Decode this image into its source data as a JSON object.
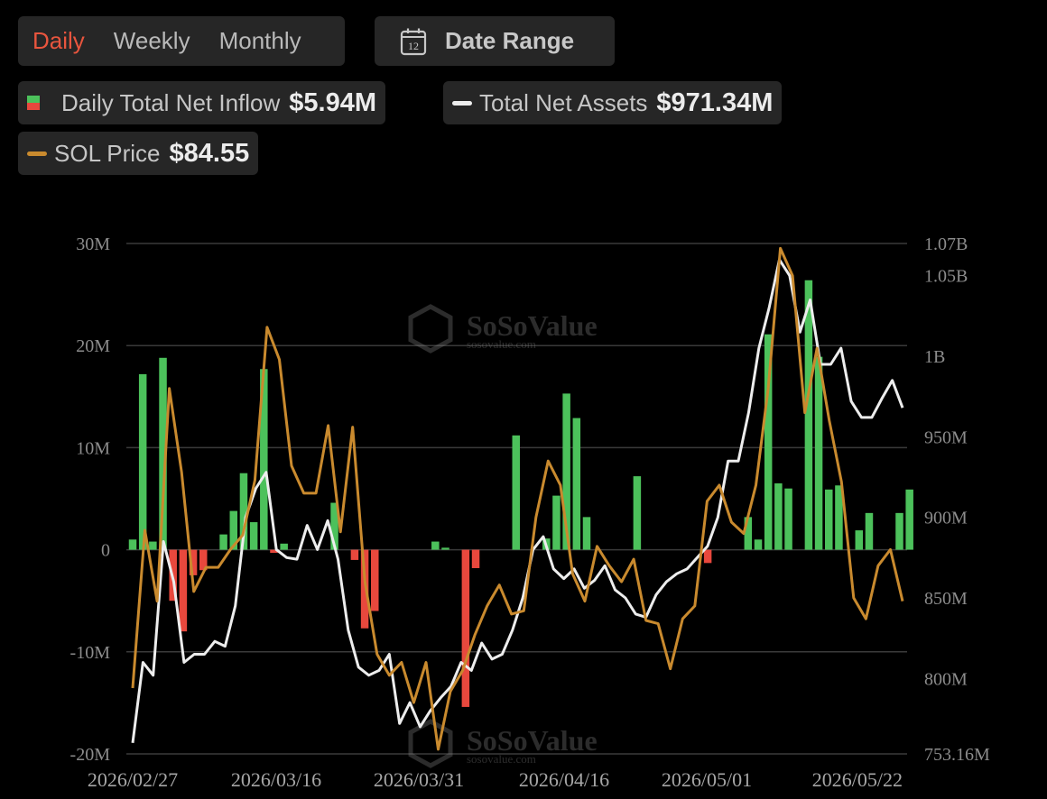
{
  "tabs": {
    "daily": "Daily",
    "weekly": "Weekly",
    "monthly": "Monthly"
  },
  "date_range": {
    "label": "Date Range",
    "icon_day": "12"
  },
  "legend": {
    "inflow": {
      "label": "Daily Total Net Inflow",
      "value": "$5.94M"
    },
    "assets": {
      "label": "Total Net Assets",
      "value": "$971.34M"
    },
    "price": {
      "label": "SOL Price",
      "value": "$84.55"
    }
  },
  "colors": {
    "positive": "#4cc15b",
    "negative": "#e8483d",
    "assets": "#ededed",
    "price": "#c98a2e",
    "active_tab": "#e8553e",
    "grid": "#3a3a3a"
  },
  "chart_data": {
    "type": "bar",
    "x_ticks": [
      "2026/02/27",
      "2026/03/16",
      "2026/03/31",
      "2026/04/16",
      "2026/05/01",
      "2026/05/22"
    ],
    "left_axis": {
      "ticks": [
        "30M",
        "20M",
        "10M",
        "0",
        "-10M",
        "-20M"
      ],
      "range": [
        -20,
        30
      ],
      "unit": "M"
    },
    "right_axis": {
      "ticks": [
        "1.07B",
        "1.05B",
        "1B",
        "950M",
        "900M",
        "850M",
        "800M",
        "753.16M"
      ],
      "range": [
        753.16,
        1070
      ],
      "unit": "M"
    },
    "series": [
      {
        "name": "Daily Total Net Inflow",
        "values": [
          1,
          17.2,
          0.8,
          18.8,
          -5,
          -8,
          -2.5,
          -2,
          0,
          1.5,
          3.8,
          7.5,
          2.7,
          17.7,
          -0.3,
          0.6,
          0,
          0,
          0,
          0,
          4.6,
          0,
          -1,
          -7.7,
          -6,
          0,
          0,
          0,
          0,
          0,
          0.8,
          0.2,
          0,
          -15.4,
          -1.8,
          0,
          0,
          0,
          11.2,
          0,
          0,
          1.1,
          5.3,
          15.3,
          12.9,
          3.2,
          0,
          0,
          0,
          0,
          7.2,
          0,
          0,
          0,
          0,
          0,
          0,
          -1.3,
          0,
          0,
          0,
          3.2,
          1,
          21.1,
          6.5,
          6,
          0,
          26.4,
          18.9,
          5.9,
          6.3,
          0,
          1.9,
          3.6,
          0,
          0,
          3.6,
          5.9
        ]
      },
      {
        "name": "Total Net Assets",
        "values": [
          760,
          810,
          802,
          885,
          860,
          810,
          815,
          815,
          823,
          820,
          845,
          900,
          918,
          928,
          880,
          875,
          874,
          895,
          880,
          898,
          874,
          830,
          807,
          802,
          805,
          815,
          772,
          785,
          770,
          780,
          788,
          795,
          810,
          805,
          822,
          812,
          815,
          830,
          850,
          880,
          888,
          868,
          862,
          868,
          856,
          861,
          870,
          855,
          850,
          840,
          838,
          852,
          860,
          865,
          868,
          875,
          882,
          900,
          935,
          935,
          965,
          1005,
          1030,
          1060,
          1050,
          1015,
          1035,
          995,
          995,
          1005,
          972,
          962,
          962,
          974,
          985,
          968
        ]
      },
      {
        "name": "SOL Price",
        "values": [
          794,
          892,
          848,
          980,
          928,
          854,
          869,
          869,
          880,
          889,
          923,
          1018,
          998,
          932,
          915,
          915,
          957,
          891,
          956,
          860,
          815,
          802,
          810,
          785,
          810,
          756,
          792,
          805,
          827,
          845,
          858,
          840,
          842,
          900,
          935,
          920,
          865,
          848,
          882,
          870,
          860,
          874,
          836,
          834,
          806,
          837,
          845,
          910,
          920,
          897,
          890,
          920,
          980,
          1067,
          1050,
          965,
          1005,
          960,
          922,
          850,
          837,
          870,
          880,
          848
        ]
      }
    ]
  }
}
